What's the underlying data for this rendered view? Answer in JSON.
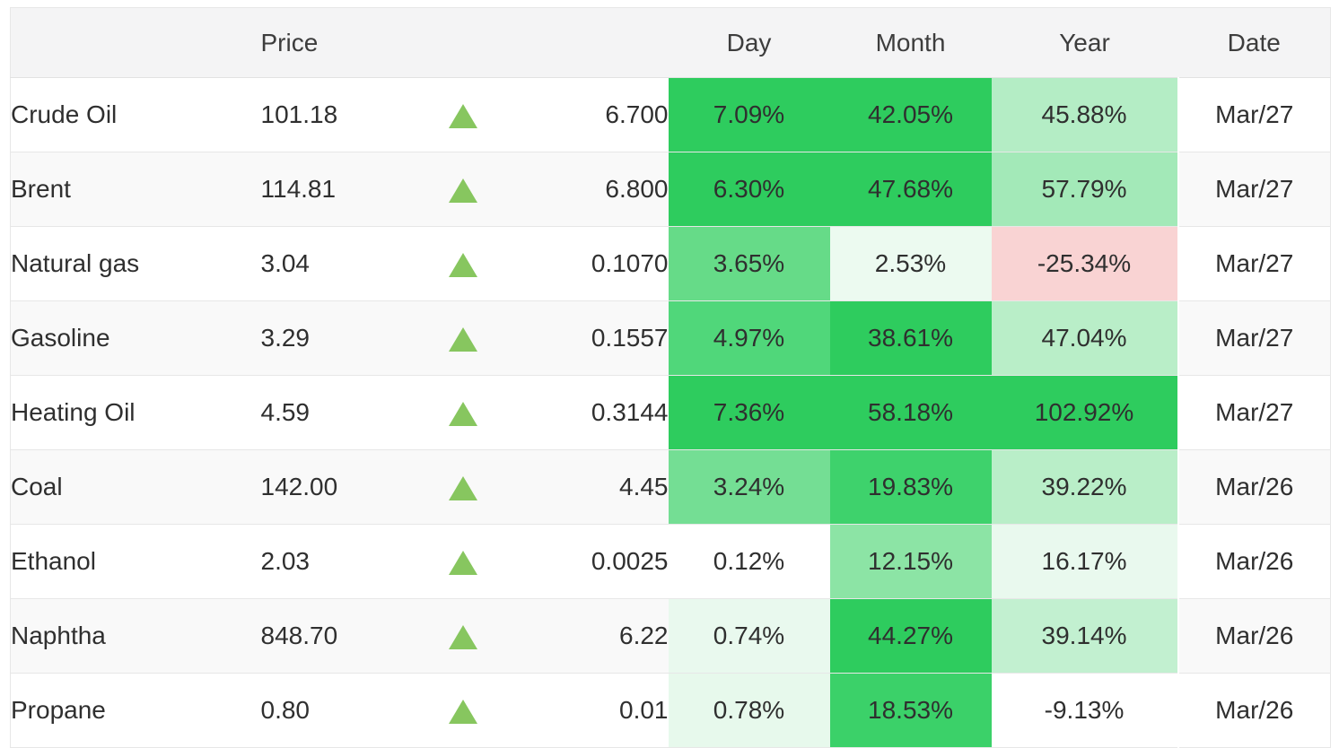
{
  "header": {
    "name": "",
    "price": "Price",
    "arrow": "",
    "change": "",
    "day": "Day",
    "month": "Month",
    "year": "Year",
    "date": "Date"
  },
  "colors": {
    "positive_strong_green": "#2ecc5e",
    "negative_light_red": "#f9d3d3",
    "arrow_up_green": "#87c65f",
    "header_bg": "#f4f4f5",
    "row_stripe_bg": "#f9f9f9",
    "border": "#e7e7e7",
    "text": "#2f2f2f"
  },
  "table": {
    "rows": [
      {
        "name": "Crude Oil",
        "price": "101.18",
        "direction": "up",
        "change": "6.700",
        "day": "7.09%",
        "month": "42.05%",
        "year": "45.88%",
        "date": "Mar/27",
        "day_bg": "#2ecc5e",
        "month_bg": "#2ecc5e",
        "year_bg": "#b4edc5"
      },
      {
        "name": "Brent",
        "price": "114.81",
        "direction": "up",
        "change": "6.800",
        "day": "6.30%",
        "month": "47.68%",
        "year": "57.79%",
        "date": "Mar/27",
        "day_bg": "#2ecc5e",
        "month_bg": "#2ecc5e",
        "year_bg": "#a3e9b8"
      },
      {
        "name": "Natural gas",
        "price": "3.04",
        "direction": "up",
        "change": "0.1070",
        "day": "3.65%",
        "month": "2.53%",
        "year": "-25.34%",
        "date": "Mar/27",
        "day_bg": "#66db88",
        "month_bg": "#ecfaf0",
        "year_bg": "#f9d3d3"
      },
      {
        "name": "Gasoline",
        "price": "3.29",
        "direction": "up",
        "change": "0.1557",
        "day": "4.97%",
        "month": "38.61%",
        "year": "47.04%",
        "date": "Mar/27",
        "day_bg": "#50d77a",
        "month_bg": "#2ecc5e",
        "year_bg": "#b9eec8"
      },
      {
        "name": "Heating Oil",
        "price": "4.59",
        "direction": "up",
        "change": "0.3144",
        "day": "7.36%",
        "month": "58.18%",
        "year": "102.92%",
        "date": "Mar/27",
        "day_bg": "#2ecc5e",
        "month_bg": "#2ecc5e",
        "year_bg": "#2ecc5e"
      },
      {
        "name": "Coal",
        "price": "142.00",
        "direction": "up",
        "change": "4.45",
        "day": "3.24%",
        "month": "19.83%",
        "year": "39.22%",
        "date": "Mar/26",
        "day_bg": "#74de94",
        "month_bg": "#3ed26c",
        "year_bg": "#b9eec8"
      },
      {
        "name": "Ethanol",
        "price": "2.03",
        "direction": "up",
        "change": "0.0025",
        "day": "0.12%",
        "month": "12.15%",
        "year": "16.17%",
        "date": "Mar/26",
        "day_bg": "",
        "month_bg": "#8ce4a5",
        "year_bg": "#e9f9ee"
      },
      {
        "name": "Naphtha",
        "price": "848.70",
        "direction": "up",
        "change": "6.22",
        "day": "0.74%",
        "month": "44.27%",
        "year": "39.14%",
        "date": "Mar/26",
        "day_bg": "#e9f9ee",
        "month_bg": "#2ecc5e",
        "year_bg": "#c2f0d0"
      },
      {
        "name": "Propane",
        "price": "0.80",
        "direction": "up",
        "change": "0.01",
        "day": "0.78%",
        "month": "18.53%",
        "year": "-9.13%",
        "date": "Mar/26",
        "day_bg": "#e7f9ec",
        "month_bg": "#3bd169",
        "year_bg": ""
      }
    ]
  }
}
